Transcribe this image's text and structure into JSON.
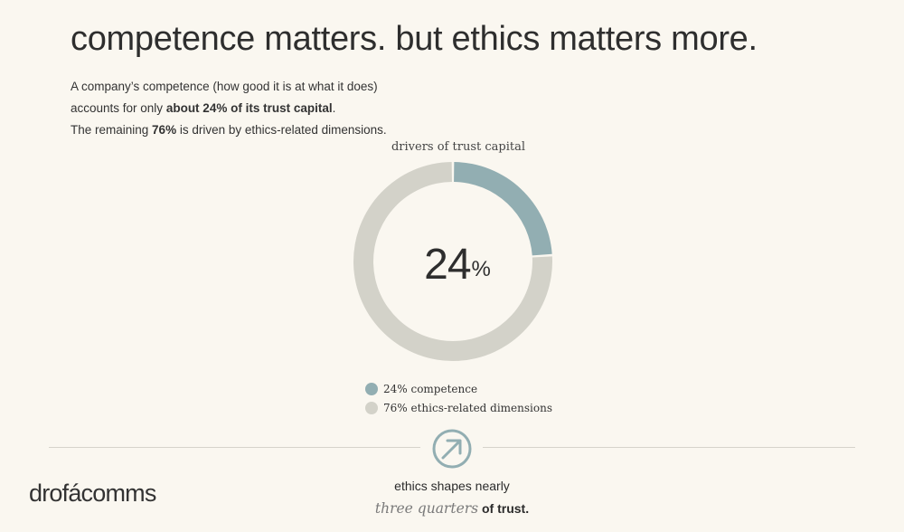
{
  "headline": "competence matters. but ethics matters more.",
  "intro": {
    "line1": "A company’s competence (how good it is at what it does)",
    "line2_pre": "accounts for only ",
    "line2_bold": "about 24% of its trust capital",
    "line2_post": ".",
    "line3_pre": "The remaining ",
    "line3_bold": "76%",
    "line3_post": " is driven by ethics-related dimensions."
  },
  "chart_data": {
    "type": "pie",
    "title": "drivers of trust capital",
    "center_value": "24",
    "center_unit": "%",
    "slices": [
      {
        "label": "24% competence",
        "value": 24,
        "color": "#92aeb2"
      },
      {
        "label": "76% ethics-related dimensions",
        "value": 76,
        "color": "#d3d2c9"
      }
    ]
  },
  "colors": {
    "background": "#faf7f0",
    "accent": "#92aeb2",
    "muted": "#d3d2c9",
    "text": "#2e2e2e"
  },
  "emblem": {
    "icon": "circle-arrow-up-right-icon"
  },
  "tagline": {
    "line1": "ethics shapes nearly",
    "emphasis": "three quarters",
    "end": " of trust."
  },
  "logo": {
    "text": "drofácomms"
  }
}
